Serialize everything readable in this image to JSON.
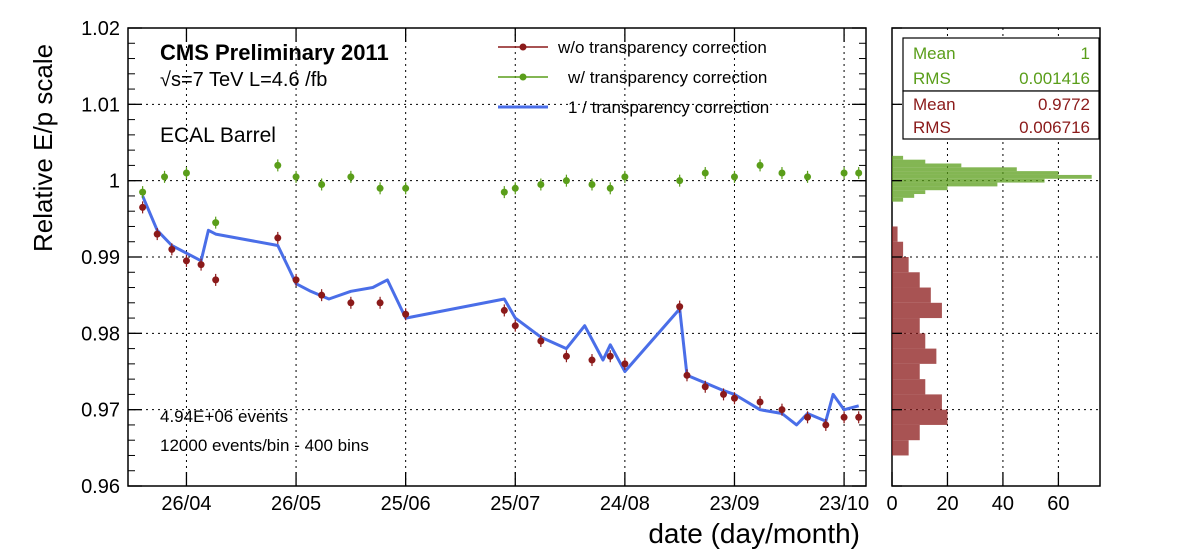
{
  "chart_data": [
    {
      "type": "scatter",
      "ylabel": "Relative E/p scale",
      "xlabel": "date (day/month)",
      "ylim": [
        0.96,
        1.02
      ],
      "yticks": [
        "0.96",
        "0.97",
        "0.98",
        "0.99",
        "1",
        "1.01",
        "1.02"
      ],
      "xticks": [
        "26/04",
        "26/05",
        "25/06",
        "25/07",
        "24/08",
        "23/09",
        "23/10"
      ],
      "grid": true,
      "annotations": {
        "experiment": "CMS Preliminary 2011",
        "energy": "√s=7 TeV   L=4.6 /fb",
        "region": "ECAL Barrel",
        "events": "4.94E+06 events",
        "binning": "12000 events/bin - 400 bins"
      },
      "legend_position": "top-right",
      "legend": [
        {
          "label": "w/o transparency correction",
          "color": "#8b1a1a",
          "style": "points"
        },
        {
          "label": "w/ transparency correction",
          "color": "#5a9e1a",
          "style": "points"
        },
        {
          "label": "1 / transparency correction",
          "color": "#4a6ee8",
          "style": "line"
        }
      ],
      "series": [
        {
          "name": "w/ transparency correction",
          "color": "#5a9e1a",
          "x": [
            "14/04",
            "20/04",
            "26/04",
            "04/05",
            "21/05",
            "26/05",
            "02/06",
            "10/06",
            "18/06",
            "25/06",
            "22/07",
            "25/07",
            "01/08",
            "08/08",
            "15/08",
            "20/08",
            "24/08",
            "08/09",
            "15/09",
            "23/09",
            "30/09",
            "06/10",
            "13/10",
            "23/10",
            "27/10"
          ],
          "y": [
            0.9985,
            1.0005,
            1.001,
            0.9945,
            1.002,
            1.0005,
            0.9995,
            1.0005,
            0.999,
            0.999,
            0.9985,
            0.999,
            0.9995,
            1.0,
            0.9995,
            0.999,
            1.0005,
            1.0,
            1.001,
            1.0005,
            1.002,
            1.001,
            1.0005,
            1.001,
            1.001
          ]
        },
        {
          "name": "w/o transparency correction",
          "color": "#8b1a1a",
          "x": [
            "14/04",
            "18/04",
            "22/04",
            "26/04",
            "30/04",
            "04/05",
            "21/05",
            "26/05",
            "02/06",
            "10/06",
            "18/06",
            "25/06",
            "22/07",
            "25/07",
            "01/08",
            "08/08",
            "15/08",
            "20/08",
            "24/08",
            "08/09",
            "10/09",
            "15/09",
            "20/09",
            "23/09",
            "30/09",
            "06/10",
            "13/10",
            "18/10",
            "23/10",
            "27/10"
          ],
          "y": [
            0.9965,
            0.993,
            0.991,
            0.9895,
            0.989,
            0.987,
            0.9925,
            0.987,
            0.985,
            0.984,
            0.984,
            0.9825,
            0.983,
            0.981,
            0.979,
            0.977,
            0.9765,
            0.977,
            0.976,
            0.9835,
            0.9745,
            0.973,
            0.972,
            0.9715,
            0.971,
            0.97,
            0.969,
            0.968,
            0.969,
            0.969
          ]
        },
        {
          "name": "1 / transparency correction",
          "color": "#4a6ee8",
          "type": "line",
          "x": [
            "14/04",
            "18/04",
            "22/04",
            "26/04",
            "30/04",
            "02/05",
            "04/05",
            "21/05",
            "24/05",
            "26/05",
            "30/05",
            "04/06",
            "10/06",
            "16/06",
            "20/06",
            "25/06",
            "22/07",
            "25/07",
            "01/08",
            "08/08",
            "13/08",
            "18/08",
            "20/08",
            "24/08",
            "08/09",
            "10/09",
            "15/09",
            "20/09",
            "23/09",
            "30/09",
            "06/10",
            "10/10",
            "13/10",
            "18/10",
            "20/10",
            "23/10",
            "27/10"
          ],
          "y": [
            0.998,
            0.9935,
            0.9915,
            0.9905,
            0.9895,
            0.9935,
            0.993,
            0.9915,
            0.9885,
            0.9865,
            0.9855,
            0.9845,
            0.9855,
            0.986,
            0.987,
            0.982,
            0.9845,
            0.982,
            0.9795,
            0.978,
            0.981,
            0.9765,
            0.9785,
            0.975,
            0.9832,
            0.9745,
            0.9735,
            0.9725,
            0.972,
            0.97,
            0.9695,
            0.968,
            0.9695,
            0.9685,
            0.972,
            0.97,
            0.9705
          ]
        }
      ]
    },
    {
      "type": "bar",
      "orientation": "horizontal",
      "xticks": [
        "0",
        "20",
        "40",
        "60"
      ],
      "xlim": [
        0,
        75
      ],
      "ylim": [
        0.96,
        1.02
      ],
      "stats": [
        {
          "color": "#5a9e1a",
          "rows": [
            {
              "label": "Mean",
              "value": "1"
            },
            {
              "label": "RMS",
              "value": "0.001416"
            }
          ]
        },
        {
          "color": "#8b1a1a",
          "rows": [
            {
              "label": "Mean",
              "value": "0.9772"
            },
            {
              "label": "RMS",
              "value": "0.006716"
            }
          ]
        }
      ],
      "series": [
        {
          "name": "w/ transparency correction",
          "color": "#5a9e1a",
          "bins": [
            0.9975,
            0.998,
            0.9985,
            0.999,
            0.9995,
            1.0,
            1.0005,
            1.001,
            1.0015,
            1.002,
            1.0025,
            1.003
          ],
          "values": [
            4,
            8,
            12,
            20,
            38,
            55,
            72,
            60,
            45,
            25,
            12,
            4
          ]
        },
        {
          "name": "w/o transparency correction",
          "color": "#8b1a1a",
          "bins": [
            0.965,
            0.967,
            0.969,
            0.971,
            0.973,
            0.975,
            0.977,
            0.979,
            0.981,
            0.983,
            0.985,
            0.987,
            0.989,
            0.991,
            0.993
          ],
          "values": [
            6,
            10,
            20,
            18,
            12,
            10,
            16,
            12,
            10,
            18,
            14,
            10,
            6,
            4,
            2
          ]
        }
      ]
    }
  ]
}
